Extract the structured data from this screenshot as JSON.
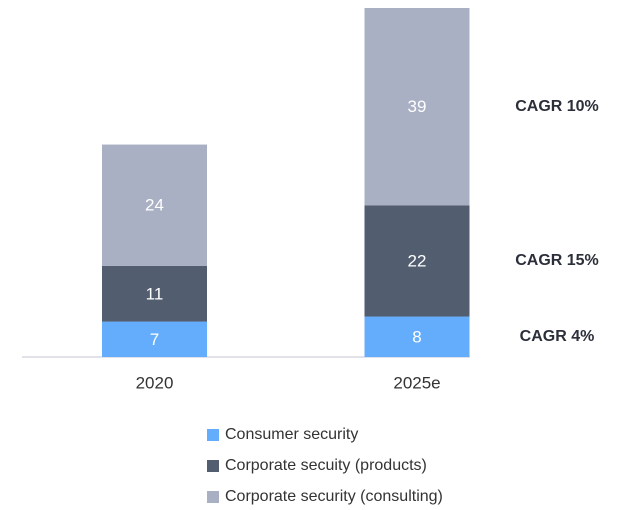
{
  "chart_data": {
    "type": "stacked_bar",
    "categories": [
      "2020",
      "2025e"
    ],
    "series": [
      {
        "name": "Consumer security",
        "color": "#64acfc",
        "values": [
          7,
          8
        ]
      },
      {
        "name": "Corporate secuity (products)",
        "color": "#525d70",
        "values": [
          11,
          22
        ]
      },
      {
        "name": "Corporate security (consulting)",
        "color": "#a9b0c3",
        "values": [
          24,
          39
        ]
      }
    ],
    "annotations": [
      "CAGR 4%",
      "CAGR 15%",
      "CAGR 10%"
    ]
  }
}
